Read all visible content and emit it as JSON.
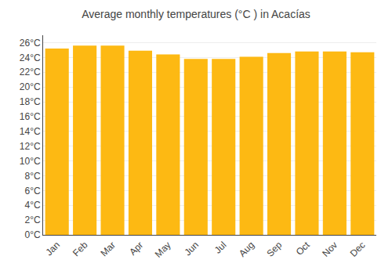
{
  "chart_data": {
    "type": "bar",
    "title": "Average monthly temperatures (°C ) in Acacías",
    "categories": [
      "Jan",
      "Feb",
      "Mar",
      "Apr",
      "May",
      "Jun",
      "Jul",
      "Aug",
      "Sep",
      "Oct",
      "Nov",
      "Dec"
    ],
    "values": [
      25.2,
      25.6,
      25.6,
      24.9,
      24.4,
      23.8,
      23.8,
      24.1,
      24.6,
      24.8,
      24.8,
      24.7
    ],
    "color": "#FDB913",
    "ylim": [
      0,
      27
    ],
    "yticks": [
      {
        "value": 0,
        "label": "0°C"
      },
      {
        "value": 2,
        "label": "2°C"
      },
      {
        "value": 4,
        "label": "4°C"
      },
      {
        "value": 6,
        "label": "6°C"
      },
      {
        "value": 8,
        "label": "8°C"
      },
      {
        "value": 10,
        "label": "10°C"
      },
      {
        "value": 12,
        "label": "12°C"
      },
      {
        "value": 14,
        "label": "14°C"
      },
      {
        "value": 16,
        "label": "16°C"
      },
      {
        "value": 18,
        "label": "18°C"
      },
      {
        "value": 20,
        "label": "20°C"
      },
      {
        "value": 22,
        "label": "22°C"
      },
      {
        "value": 24,
        "label": "24°C"
      },
      {
        "value": 26,
        "label": "26°C"
      }
    ],
    "grid": true
  }
}
